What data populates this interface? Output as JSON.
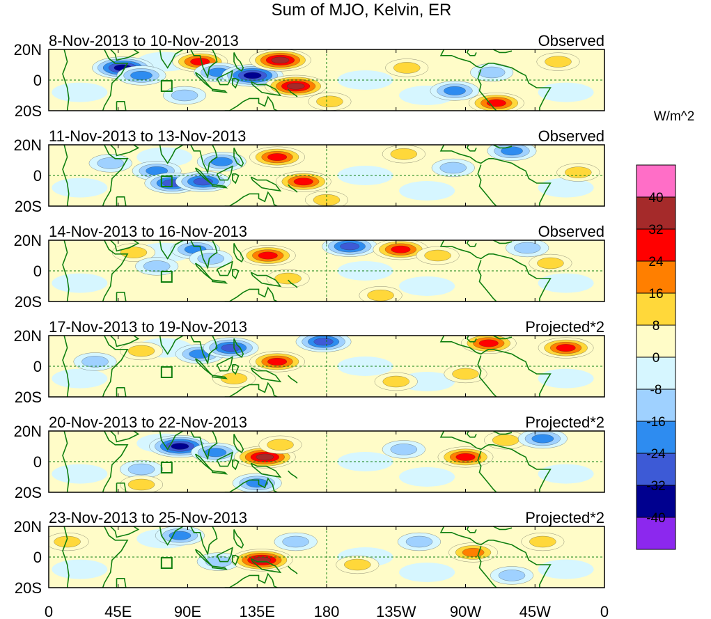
{
  "chart_data": {
    "type": "heatmap",
    "title": "Sum of MJO, Kelvin, ER",
    "units": "W/m^2",
    "x_ticks": [
      "0",
      "45E",
      "90E",
      "135E",
      "180",
      "135W",
      "90W",
      "45W",
      "0"
    ],
    "x_range_degrees_east": [
      0,
      360
    ],
    "y_ticks": [
      "20N",
      "0",
      "20S"
    ],
    "y_range_degrees": [
      -20,
      20
    ],
    "colorbar": {
      "levels": [
        "40",
        "32",
        "24",
        "16",
        "8",
        "0",
        "-8",
        "-16",
        "-24",
        "-32",
        "-40"
      ],
      "colors": [
        "#ff6ec7",
        "#a52a2a",
        "#ff0000",
        "#ff7f00",
        "#ffd83a",
        "#fffcc8",
        "#d6f6ff",
        "#9fd1ff",
        "#2e8cf0",
        "#3d5ad6",
        "#00008f",
        "#8c28ee"
      ]
    },
    "panels": [
      {
        "date_range": "8-Nov-2013 to 10-Nov-2013",
        "label": "Observed",
        "anomalies": [
          {
            "lon": 48,
            "lat": 8,
            "value": -40
          },
          {
            "lon": 60,
            "lat": 3,
            "value": -24
          },
          {
            "lon": 88,
            "lat": -10,
            "value": -16
          },
          {
            "lon": 98,
            "lat": 12,
            "value": 32
          },
          {
            "lon": 110,
            "lat": 5,
            "value": -24
          },
          {
            "lon": 132,
            "lat": 3,
            "value": -40
          },
          {
            "lon": 150,
            "lat": 13,
            "value": 40
          },
          {
            "lon": 160,
            "lat": -4,
            "value": 40
          },
          {
            "lon": 182,
            "lat": -14,
            "value": 16
          },
          {
            "lon": 232,
            "lat": 8,
            "value": 16
          },
          {
            "lon": 263,
            "lat": -7,
            "value": -24
          },
          {
            "lon": 290,
            "lat": -15,
            "value": 32
          },
          {
            "lon": 287,
            "lat": 5,
            "value": -16
          },
          {
            "lon": 330,
            "lat": 12,
            "value": 16
          }
        ]
      },
      {
        "date_range": "11-Nov-2013 to 13-Nov-2013",
        "label": "Observed",
        "anomalies": [
          {
            "lon": 40,
            "lat": 8,
            "value": -16
          },
          {
            "lon": 70,
            "lat": 3,
            "value": -24
          },
          {
            "lon": 80,
            "lat": -5,
            "value": -32
          },
          {
            "lon": 100,
            "lat": -4,
            "value": -32
          },
          {
            "lon": 112,
            "lat": 9,
            "value": -24
          },
          {
            "lon": 148,
            "lat": 12,
            "value": 32
          },
          {
            "lon": 165,
            "lat": -4,
            "value": 32
          },
          {
            "lon": 180,
            "lat": -16,
            "value": 16
          },
          {
            "lon": 230,
            "lat": 14,
            "value": 16
          },
          {
            "lon": 262,
            "lat": 5,
            "value": -16
          },
          {
            "lon": 300,
            "lat": 16,
            "value": -24
          },
          {
            "lon": 343,
            "lat": 2,
            "value": 16
          }
        ]
      },
      {
        "date_range": "14-Nov-2013 to 16-Nov-2013",
        "label": "Observed",
        "anomalies": [
          {
            "lon": 55,
            "lat": 12,
            "value": 16
          },
          {
            "lon": 70,
            "lat": 3,
            "value": -16
          },
          {
            "lon": 95,
            "lat": 14,
            "value": -24
          },
          {
            "lon": 105,
            "lat": 8,
            "value": -16
          },
          {
            "lon": 142,
            "lat": 10,
            "value": 32
          },
          {
            "lon": 155,
            "lat": -5,
            "value": 16
          },
          {
            "lon": 195,
            "lat": 16,
            "value": -32
          },
          {
            "lon": 228,
            "lat": 14,
            "value": 32
          },
          {
            "lon": 252,
            "lat": 10,
            "value": 16
          },
          {
            "lon": 215,
            "lat": -16,
            "value": 16
          },
          {
            "lon": 325,
            "lat": 5,
            "value": 16
          },
          {
            "lon": 310,
            "lat": 15,
            "value": -16
          }
        ]
      },
      {
        "date_range": "17-Nov-2013 to 19-Nov-2013",
        "label": "Projected*2",
        "anomalies": [
          {
            "lon": 30,
            "lat": 3,
            "value": -16
          },
          {
            "lon": 60,
            "lat": 10,
            "value": 16
          },
          {
            "lon": 98,
            "lat": 8,
            "value": -24
          },
          {
            "lon": 118,
            "lat": 12,
            "value": -32
          },
          {
            "lon": 148,
            "lat": 3,
            "value": 32
          },
          {
            "lon": 120,
            "lat": -8,
            "value": 16
          },
          {
            "lon": 178,
            "lat": 16,
            "value": -32
          },
          {
            "lon": 225,
            "lat": -10,
            "value": 16
          },
          {
            "lon": 285,
            "lat": 15,
            "value": 32
          },
          {
            "lon": 335,
            "lat": 12,
            "value": 32
          },
          {
            "lon": 270,
            "lat": -5,
            "value": 16
          }
        ]
      },
      {
        "date_range": "20-Nov-2013 to 22-Nov-2013",
        "label": "Projected*2",
        "anomalies": [
          {
            "lon": 85,
            "lat": 10,
            "value": -40
          },
          {
            "lon": 108,
            "lat": 6,
            "value": -24
          },
          {
            "lon": 60,
            "lat": -5,
            "value": -16
          },
          {
            "lon": 140,
            "lat": 3,
            "value": 40
          },
          {
            "lon": 150,
            "lat": 11,
            "value": 16
          },
          {
            "lon": 135,
            "lat": -14,
            "value": -24
          },
          {
            "lon": 230,
            "lat": 8,
            "value": -16
          },
          {
            "lon": 270,
            "lat": 3,
            "value": 32
          },
          {
            "lon": 296,
            "lat": 14,
            "value": 16
          },
          {
            "lon": 320,
            "lat": 15,
            "value": -24
          },
          {
            "lon": 60,
            "lat": -15,
            "value": 16
          }
        ]
      },
      {
        "date_range": "23-Nov-2013 to 25-Nov-2013",
        "label": "Projected*2",
        "anomalies": [
          {
            "lon": 12,
            "lat": 10,
            "value": 16
          },
          {
            "lon": 85,
            "lat": 14,
            "value": -24
          },
          {
            "lon": 110,
            "lat": -3,
            "value": -16
          },
          {
            "lon": 138,
            "lat": -2,
            "value": 40
          },
          {
            "lon": 160,
            "lat": 10,
            "value": -16
          },
          {
            "lon": 200,
            "lat": -5,
            "value": 16
          },
          {
            "lon": 240,
            "lat": 10,
            "value": -16
          },
          {
            "lon": 275,
            "lat": 3,
            "value": 24
          },
          {
            "lon": 320,
            "lat": 10,
            "value": 16
          },
          {
            "lon": 300,
            "lat": -12,
            "value": -16
          }
        ]
      }
    ]
  }
}
